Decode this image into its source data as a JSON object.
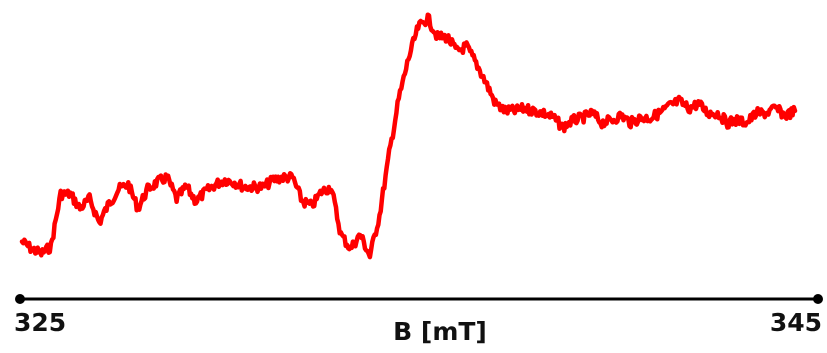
{
  "chart_data": {
    "type": "line",
    "title": "",
    "xlabel": "B [mT]",
    "ylabel": "",
    "xlim": [
      325,
      345
    ],
    "x_ticks": [
      "325",
      "345"
    ],
    "grid": false,
    "legend": "none",
    "colors": {
      "trace": "#ff0000",
      "axis": "#000000",
      "text": "#111111"
    },
    "series": [
      {
        "x": [
          325.0,
          325.25,
          325.5,
          325.75,
          326.0,
          326.25,
          326.5,
          326.75,
          327.0,
          327.25,
          327.5,
          327.75,
          328.0,
          328.25,
          328.5,
          328.75,
          329.0,
          329.25,
          329.5,
          329.75,
          330.0,
          330.25,
          330.5,
          330.75,
          331.0,
          331.25,
          331.5,
          331.75,
          332.0,
          332.25,
          332.5,
          332.75,
          333.0,
          333.25,
          333.5,
          333.75,
          334.0,
          334.25,
          334.5,
          334.75,
          335.0,
          335.25,
          335.5,
          335.75,
          336.0,
          336.25,
          336.5,
          336.75,
          337.0,
          337.25,
          337.5,
          337.75,
          338.0,
          338.25,
          338.5,
          338.75,
          339.0,
          339.25,
          339.5,
          339.75,
          340.0,
          340.25,
          340.5,
          340.75,
          341.0,
          341.25,
          341.5,
          341.75,
          342.0,
          342.25,
          342.5,
          342.75,
          343.0,
          343.25,
          343.5,
          343.75,
          344.0,
          344.25,
          344.5,
          344.75,
          345.0
        ],
        "y": [
          0.06,
          0.03,
          0.01,
          0.04,
          0.26,
          0.26,
          0.2,
          0.24,
          0.14,
          0.22,
          0.28,
          0.3,
          0.2,
          0.28,
          0.31,
          0.33,
          0.24,
          0.29,
          0.23,
          0.27,
          0.3,
          0.32,
          0.31,
          0.29,
          0.29,
          0.29,
          0.32,
          0.33,
          0.33,
          0.23,
          0.21,
          0.27,
          0.29,
          0.09,
          0.03,
          0.09,
          0.0,
          0.17,
          0.43,
          0.66,
          0.83,
          0.96,
          1.0,
          0.92,
          0.92,
          0.86,
          0.88,
          0.81,
          0.73,
          0.64,
          0.61,
          0.61,
          0.62,
          0.61,
          0.6,
          0.58,
          0.54,
          0.57,
          0.58,
          0.6,
          0.56,
          0.57,
          0.59,
          0.56,
          0.58,
          0.58,
          0.6,
          0.63,
          0.65,
          0.62,
          0.64,
          0.6,
          0.6,
          0.56,
          0.57,
          0.56,
          0.6,
          0.6,
          0.62,
          0.59,
          0.61
        ]
      }
    ]
  }
}
